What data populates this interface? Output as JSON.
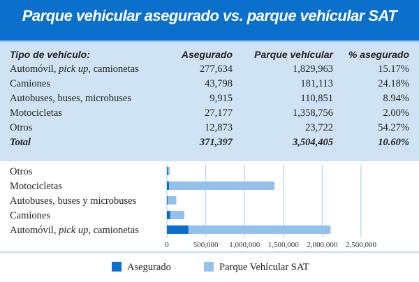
{
  "title": "Parque vehicular asegurado vs. parque vehícular SAT",
  "table": {
    "headers": [
      "Tipo de vehículo:",
      "Asegurado",
      "Parque vehícular",
      "% asegurado"
    ],
    "rows": [
      {
        "pre": "Automóvil, ",
        "it": "pick up",
        "post": ", camionetas",
        "asegurado": "277,634",
        "parque": "1,829,963",
        "pct": "15.17%"
      },
      {
        "pre": "Camiones",
        "it": "",
        "post": "",
        "asegurado": "43,798",
        "parque": "181,113",
        "pct": "24.18%"
      },
      {
        "pre": "Autobuses, buses, microbuses",
        "it": "",
        "post": "",
        "asegurado": "9,915",
        "parque": "110,851",
        "pct": "8.94%"
      },
      {
        "pre": "Motocicletas",
        "it": "",
        "post": "",
        "asegurado": "27,177",
        "parque": "1,358,756",
        "pct": "2.00%"
      },
      {
        "pre": "Otros",
        "it": "",
        "post": "",
        "asegurado": "12,873",
        "parque": "23,722",
        "pct": "54.27%"
      }
    ],
    "total": {
      "label": "Total",
      "asegurado": "371,397",
      "parque": "3,504,405",
      "pct": "10.60%"
    }
  },
  "chart_data": {
    "type": "bar",
    "orientation": "horizontal",
    "stacked": true,
    "categories": [
      "Otros",
      "Motocicletas",
      "Autobuses, buses y microbuses",
      "Camiones",
      "Automóvil, pick up, camionetas"
    ],
    "series": [
      {
        "name": "Asegurado",
        "color": "#0b6fcc",
        "values": [
          12873,
          27177,
          9915,
          43798,
          277634
        ]
      },
      {
        "name": "Parque Vehícular SAT",
        "color": "#94c1ec",
        "values": [
          23722,
          1358756,
          110851,
          181113,
          1829963
        ]
      }
    ],
    "xlim": [
      0,
      2500000
    ],
    "xticks": [
      0,
      500000,
      1000000,
      1500000,
      2000000,
      2500000
    ],
    "xtick_labels": [
      "0",
      "500,000",
      "1,000,000",
      "1,500,000",
      "2,000,000",
      "2,500,000"
    ],
    "legend": "bottom",
    "grid": true
  }
}
